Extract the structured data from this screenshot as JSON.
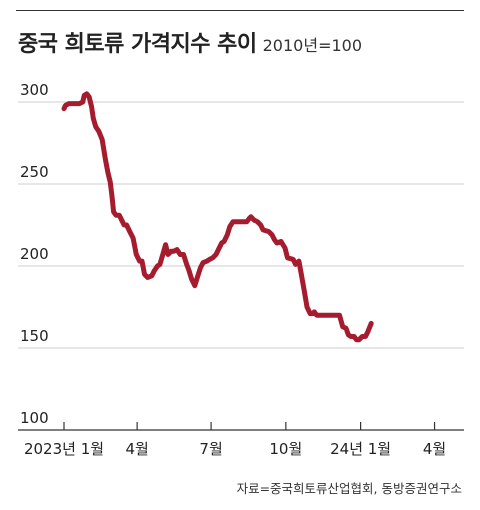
{
  "title": "중국 희토류 가격지수 추이",
  "subtitle": "2010년=100",
  "source": "자료=중국희토류산업협회, 동방증권연구소",
  "colors": {
    "line": "#a51c2e",
    "grid": "#cfcfcf",
    "axis": "#333333",
    "text": "#222222"
  },
  "chart_data": {
    "type": "line",
    "title": "중국 희토류 가격지수 추이",
    "subtitle": "2010년=100",
    "xlabel": "",
    "ylabel": "",
    "ylim": [
      100,
      300
    ],
    "yticks": [
      300,
      250,
      200,
      150,
      100
    ],
    "grid": "horizontal",
    "legend": "none",
    "x_range": [
      "2023-01-01",
      "2024-04-20"
    ],
    "x_ticks": [
      {
        "label": "2023년 1월",
        "date": "2023-01-01"
      },
      {
        "label": "4월",
        "date": "2023-04-01"
      },
      {
        "label": "7월",
        "date": "2023-07-01"
      },
      {
        "label": "10월",
        "date": "2023-10-01"
      },
      {
        "label": "24년 1월",
        "date": "2024-01-01"
      },
      {
        "label": "4월",
        "date": "2024-04-01"
      }
    ],
    "series": [
      {
        "name": "",
        "color": "#a51c2e",
        "points": [
          [
            "2023-01-01",
            296
          ],
          [
            "2023-01-03",
            298
          ],
          [
            "2023-01-07",
            299
          ],
          [
            "2023-01-15",
            299
          ],
          [
            "2023-01-20",
            299
          ],
          [
            "2023-01-24",
            300
          ],
          [
            "2023-01-26",
            304
          ],
          [
            "2023-01-29",
            305
          ],
          [
            "2023-02-01",
            303
          ],
          [
            "2023-02-04",
            297
          ],
          [
            "2023-02-06",
            290
          ],
          [
            "2023-02-09",
            285
          ],
          [
            "2023-02-13",
            282
          ],
          [
            "2023-02-17",
            277
          ],
          [
            "2023-02-21",
            265
          ],
          [
            "2023-02-24",
            257
          ],
          [
            "2023-02-27",
            251
          ],
          [
            "2023-03-01",
            243
          ],
          [
            "2023-03-03",
            233
          ],
          [
            "2023-03-06",
            231
          ],
          [
            "2023-03-10",
            231
          ],
          [
            "2023-03-13",
            228
          ],
          [
            "2023-03-16",
            225
          ],
          [
            "2023-03-19",
            225
          ],
          [
            "2023-03-23",
            221
          ],
          [
            "2023-03-27",
            217
          ],
          [
            "2023-03-31",
            207
          ],
          [
            "2023-04-04",
            203
          ],
          [
            "2023-04-07",
            203
          ],
          [
            "2023-04-10",
            195
          ],
          [
            "2023-04-14",
            193
          ],
          [
            "2023-04-19",
            194
          ],
          [
            "2023-04-22",
            197
          ],
          [
            "2023-04-26",
            200
          ],
          [
            "2023-04-29",
            201
          ],
          [
            "2023-05-02",
            206
          ],
          [
            "2023-05-06",
            213
          ],
          [
            "2023-05-09",
            207
          ],
          [
            "2023-05-13",
            209
          ],
          [
            "2023-05-16",
            209
          ],
          [
            "2023-05-20",
            210
          ],
          [
            "2023-05-24",
            207
          ],
          [
            "2023-05-28",
            207
          ],
          [
            "2023-06-01",
            201
          ],
          [
            "2023-06-04",
            197
          ],
          [
            "2023-06-07",
            192
          ],
          [
            "2023-06-11",
            188
          ],
          [
            "2023-06-14",
            193
          ],
          [
            "2023-06-18",
            199
          ],
          [
            "2023-06-21",
            202
          ],
          [
            "2023-06-26",
            203
          ],
          [
            "2023-06-29",
            204
          ],
          [
            "2023-07-03",
            205
          ],
          [
            "2023-07-07",
            207
          ],
          [
            "2023-07-11",
            211
          ],
          [
            "2023-07-14",
            214
          ],
          [
            "2023-07-17",
            215
          ],
          [
            "2023-07-21",
            219
          ],
          [
            "2023-07-24",
            224
          ],
          [
            "2023-07-28",
            227
          ],
          [
            "2023-08-01",
            227
          ],
          [
            "2023-08-08",
            227
          ],
          [
            "2023-08-14",
            227
          ],
          [
            "2023-08-17",
            229
          ],
          [
            "2023-08-19",
            230
          ],
          [
            "2023-08-23",
            228
          ],
          [
            "2023-08-27",
            227
          ],
          [
            "2023-08-31",
            225
          ],
          [
            "2023-09-03",
            222
          ],
          [
            "2023-09-10",
            221
          ],
          [
            "2023-09-14",
            219
          ],
          [
            "2023-09-17",
            216
          ],
          [
            "2023-09-20",
            214
          ],
          [
            "2023-09-25",
            215
          ],
          [
            "2023-09-30",
            211
          ],
          [
            "2023-10-03",
            205
          ],
          [
            "2023-10-10",
            204
          ],
          [
            "2023-10-13",
            201
          ],
          [
            "2023-10-17",
            203
          ],
          [
            "2023-10-20",
            195
          ],
          [
            "2023-10-24",
            184
          ],
          [
            "2023-10-27",
            175
          ],
          [
            "2023-10-31",
            171
          ],
          [
            "2023-11-03",
            171
          ],
          [
            "2023-11-05",
            172
          ],
          [
            "2023-11-08",
            170
          ],
          [
            "2023-11-20",
            170
          ],
          [
            "2023-12-01",
            170
          ],
          [
            "2023-12-06",
            170
          ],
          [
            "2023-12-10",
            163
          ],
          [
            "2023-12-14",
            162
          ],
          [
            "2023-12-17",
            158
          ],
          [
            "2023-12-20",
            157
          ],
          [
            "2023-12-24",
            157
          ],
          [
            "2023-12-27",
            155
          ],
          [
            "2023-12-30",
            155
          ],
          [
            "2024-01-03",
            157
          ],
          [
            "2024-01-07",
            157
          ],
          [
            "2024-01-10",
            160
          ],
          [
            "2024-01-14",
            165
          ]
        ]
      }
    ]
  }
}
